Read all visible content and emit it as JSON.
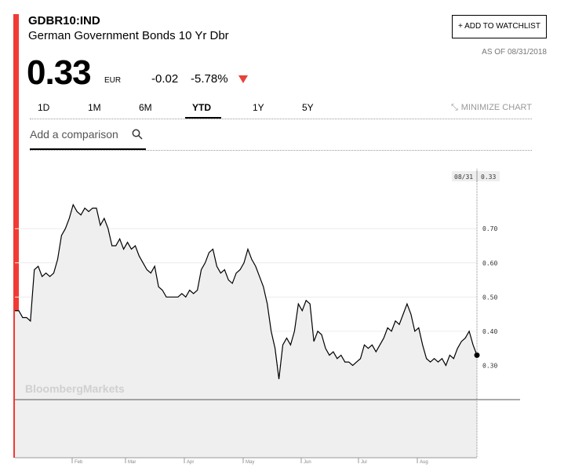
{
  "header": {
    "ticker": "GDBR10:IND",
    "name": "German Government Bonds 10 Yr Dbr",
    "watchlist_button": "+ ADD TO WATCHLIST",
    "as_of": "AS OF 08/31/2018"
  },
  "quote": {
    "price": 0.33,
    "currency": "EUR",
    "change": -0.02,
    "change_percent": "-5.78%"
  },
  "tabs": [
    "1D",
    "1M",
    "6M",
    "YTD",
    "1Y",
    "5Y"
  ],
  "active_tab": 3,
  "minimize": "MINIMIZE CHART",
  "comparison_placeholder": "Add a comparison",
  "chart_data": {
    "type": "line",
    "watermark": "BloombergMarkets",
    "color": "#000000",
    "fill_color": "#efefef",
    "x_labels": [
      "Feb",
      "Mar",
      "Apr",
      "May",
      "Jun",
      "Jul",
      "Aug"
    ],
    "last_date": "08/31",
    "values": [
      0.46,
      0.46,
      0.44,
      0.44,
      0.43,
      0.58,
      0.59,
      0.56,
      0.57,
      0.56,
      0.57,
      0.61,
      0.68,
      0.7,
      0.73,
      0.77,
      0.75,
      0.74,
      0.76,
      0.75,
      0.76,
      0.76,
      0.71,
      0.73,
      0.7,
      0.65,
      0.65,
      0.67,
      0.64,
      0.66,
      0.64,
      0.65,
      0.62,
      0.6,
      0.58,
      0.57,
      0.59,
      0.53,
      0.52,
      0.5,
      0.5,
      0.5,
      0.5,
      0.51,
      0.5,
      0.52,
      0.51,
      0.52,
      0.58,
      0.6,
      0.63,
      0.64,
      0.59,
      0.57,
      0.58,
      0.55,
      0.54,
      0.57,
      0.58,
      0.6,
      0.64,
      0.61,
      0.59,
      0.56,
      0.53,
      0.48,
      0.4,
      0.35,
      0.26,
      0.36,
      0.38,
      0.36,
      0.4,
      0.48,
      0.46,
      0.49,
      0.48,
      0.37,
      0.4,
      0.39,
      0.35,
      0.33,
      0.34,
      0.32,
      0.33,
      0.31,
      0.31,
      0.3,
      0.31,
      0.32,
      0.36,
      0.35,
      0.36,
      0.34,
      0.36,
      0.38,
      0.41,
      0.4,
      0.43,
      0.42,
      0.45,
      0.48,
      0.45,
      0.4,
      0.41,
      0.36,
      0.32,
      0.31,
      0.32,
      0.31,
      0.32,
      0.3,
      0.33,
      0.32,
      0.35,
      0.37,
      0.38,
      0.4,
      0.36,
      0.33
    ],
    "ylim": [
      0.2,
      0.875
    ],
    "yticks": [
      {
        "value": 0.3,
        "label": "0.30"
      },
      {
        "value": 0.4,
        "label": "0.40"
      },
      {
        "value": 0.5,
        "label": "0.50"
      },
      {
        "value": 0.6,
        "label": "0.60"
      },
      {
        "value": 0.7,
        "label": "0.70"
      }
    ]
  }
}
